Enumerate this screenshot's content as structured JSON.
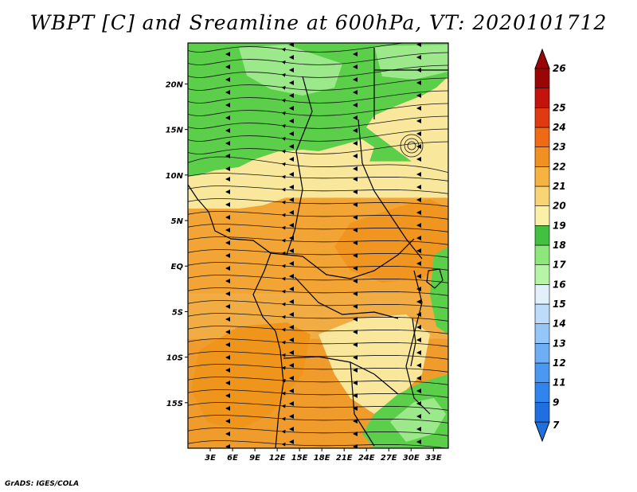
{
  "title": "WBPT [C] and Sreamline at 600hPa, VT: 2020101712",
  "credit": "GrADS: IGES/COLA",
  "map": {
    "variable": "Wet-bulb potential temperature",
    "units": "C",
    "level": "600hPa",
    "lon_range": [
      0,
      35
    ],
    "lat_range": [
      -20,
      24.5
    ],
    "lat_labels": [
      "20N",
      "15N",
      "10N",
      "5N",
      "EQ",
      "5S",
      "10S",
      "15S"
    ],
    "lat_values": [
      20,
      15,
      10,
      5,
      0,
      -5,
      -10,
      -15
    ],
    "lon_labels": [
      "3E",
      "6E",
      "9E",
      "12E",
      "15E",
      "18E",
      "21E",
      "24E",
      "27E",
      "30E",
      "33E"
    ],
    "lon_values": [
      3,
      6,
      9,
      12,
      15,
      18,
      21,
      24,
      27,
      30,
      33
    ]
  },
  "colorbar": {
    "labels": [
      "7",
      "9",
      "11",
      "12",
      "13",
      "14",
      "15",
      "16",
      "17",
      "18",
      "19",
      "20",
      "21",
      "22",
      "23",
      "24",
      "25",
      "26"
    ],
    "colors": [
      "#1f6fe0",
      "#2f84ee",
      "#4b98f2",
      "#6eaef5",
      "#94c6f8",
      "#bcdcfa",
      "#e1f0fb",
      "#b6f5a6",
      "#8ee77b",
      "#42c03f",
      "#fbf0a8",
      "#f8d475",
      "#f5b441",
      "#f09020",
      "#ee6a14",
      "#e03a10",
      "#c4120c",
      "#9a0606"
    ]
  },
  "bands": [
    {
      "name": "north-green",
      "lat_max": 24.5,
      "lat_min": 11.5,
      "color": "#5ccf4a"
    },
    {
      "name": "pale-yellow",
      "lat_max": 11.5,
      "lat_min": 7.5,
      "color": "#f9e79b"
    },
    {
      "name": "orange-core",
      "lat_max": 7.5,
      "lat_min": -3,
      "color": "#f2a434"
    },
    {
      "name": "mid-orange",
      "lat_max": -3,
      "lat_min": -8,
      "color": "#f1ad43"
    },
    {
      "name": "south-orange",
      "lat_max": -8,
      "lat_min": -20,
      "color": "#ef9c2c"
    }
  ]
}
